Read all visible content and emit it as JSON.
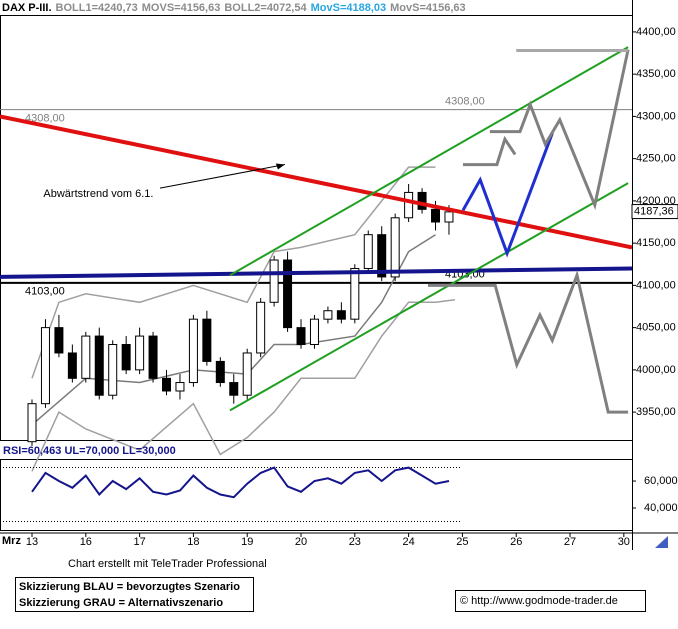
{
  "chart_data": {
    "type": "candlestick",
    "header": [
      {
        "text": "DAX P-III.",
        "color": "#000000"
      },
      {
        "text": "BOLL1=4240,73",
        "color": "#8c8c8c"
      },
      {
        "text": "MOVS=4156,63",
        "color": "#8c8c8c"
      },
      {
        "text": "BOLL2=4072,54",
        "color": "#8c8c8c"
      },
      {
        "text": "MovS=4188,03",
        "color": "#2aa6e0"
      },
      {
        "text": "MovS=4156,63",
        "color": "#8c8c8c"
      }
    ],
    "x_axis_label": "Mrz",
    "xlim": [
      -0.595,
      11.152
    ],
    "xticks": [
      {
        "value": 0,
        "label": "13"
      },
      {
        "value": 1,
        "label": "16"
      },
      {
        "value": 2,
        "label": "17"
      },
      {
        "value": 3,
        "label": "18"
      },
      {
        "value": 4,
        "label": "19"
      },
      {
        "value": 5,
        "label": "20"
      },
      {
        "value": 6,
        "label": "23"
      },
      {
        "value": 7,
        "label": "24"
      },
      {
        "value": 8,
        "label": "25"
      },
      {
        "value": 9,
        "label": "26"
      },
      {
        "value": 10,
        "label": "27"
      },
      {
        "value": 11,
        "label": "30"
      }
    ],
    "ylim": [
      3917,
      4420
    ],
    "yticks": [
      {
        "value": 3950,
        "label": "3950,00"
      },
      {
        "value": 4000,
        "label": "4000,00"
      },
      {
        "value": 4050,
        "label": "4050,00"
      },
      {
        "value": 4100,
        "label": "4100,00"
      },
      {
        "value": 4150,
        "label": "4150,00"
      },
      {
        "value": 4200,
        "label": "4200,00"
      },
      {
        "value": 4250,
        "label": "4250,00"
      },
      {
        "value": 4300,
        "label": "4300,00"
      },
      {
        "value": 4350,
        "label": "4350,00"
      },
      {
        "value": 4400,
        "label": "4400,00"
      }
    ],
    "candles": {
      "x": [
        0,
        0.25,
        0.5,
        0.75,
        1,
        1.25,
        1.5,
        1.75,
        2,
        2.25,
        2.5,
        2.75,
        3,
        3.25,
        3.5,
        3.75,
        4,
        4.25,
        4.5,
        4.75,
        5,
        5.25,
        5.5,
        5.75,
        6,
        6.25,
        6.5,
        6.75,
        7,
        7.25,
        7.5,
        7.75
      ],
      "open": [
        3915,
        3960,
        4050,
        4020,
        3990,
        4040,
        3970,
        4030,
        4000,
        4040,
        3990,
        3975,
        3985,
        4060,
        4010,
        3985,
        3970,
        4020,
        4080,
        4130,
        4050,
        4030,
        4060,
        4070,
        4060,
        4120,
        4160,
        4110,
        4180,
        4210,
        4190,
        4175
      ],
      "high": [
        3965,
        4060,
        4065,
        4030,
        4045,
        4050,
        4035,
        4040,
        4050,
        4045,
        4000,
        3995,
        4065,
        4070,
        4015,
        3995,
        4025,
        4085,
        4135,
        4140,
        4060,
        4065,
        4075,
        4080,
        4125,
        4165,
        4170,
        4185,
        4220,
        4215,
        4200,
        4195
      ],
      "low": [
        3910,
        3955,
        4015,
        3985,
        3985,
        3965,
        3965,
        3995,
        3995,
        3985,
        3970,
        3965,
        3980,
        4005,
        3980,
        3960,
        3965,
        4015,
        4075,
        4045,
        4025,
        4025,
        4055,
        4055,
        4055,
        4115,
        4105,
        4105,
        4175,
        4185,
        4165,
        4160
      ],
      "close": [
        3960,
        4050,
        4020,
        3990,
        4040,
        3970,
        4030,
        4000,
        4040,
        3990,
        3975,
        3985,
        4060,
        4010,
        3985,
        3970,
        4020,
        4080,
        4130,
        4050,
        4030,
        4060,
        4070,
        4060,
        4120,
        4160,
        4110,
        4180,
        4210,
        4190,
        4175,
        4187
      ]
    },
    "last_price": {
      "value": 4187.36,
      "label": "4187,36"
    },
    "overlays": [
      {
        "color": "#a0a0a0",
        "x": [
          0,
          0.5,
          1,
          2,
          3,
          4,
          4.5,
          5,
          6,
          6.5,
          7,
          7.5
        ],
        "values": [
          3990,
          4080,
          4090,
          4080,
          4100,
          4080,
          4140,
          4145,
          4160,
          4200,
          4240,
          4240
        ]
      },
      {
        "color": "#a0a0a0",
        "x": [
          0,
          0.5,
          1,
          2,
          3,
          3.5,
          4,
          4.5,
          5,
          6,
          6.5,
          7,
          7.5,
          7.86
        ],
        "values": [
          3880,
          3950,
          3930,
          3905,
          3960,
          3900,
          3920,
          3950,
          3990,
          3990,
          4040,
          4080,
          4080,
          4083
        ]
      },
      {
        "color": "#7a7a7a",
        "x": [
          0,
          1,
          2,
          3,
          4,
          4.5,
          5,
          6,
          6.5,
          7,
          7.5
        ],
        "values": [
          3935,
          3990,
          3985,
          4000,
          3995,
          4030,
          4030,
          4040,
          4080,
          4140,
          4160
        ]
      }
    ],
    "levels": [
      {
        "value": 4308,
        "label": "4308,00",
        "color": "#808080"
      },
      {
        "value": 4103,
        "label": "4103,00",
        "color": "#000000"
      }
    ],
    "lines": [
      {
        "color": "#e01010",
        "width": 4,
        "x": [
          -0.595,
          11.152
        ],
        "values": [
          4300,
          4145
        ]
      },
      {
        "color": "#14148c",
        "width": 4,
        "x": [
          -0.595,
          11.152
        ],
        "values": [
          4110,
          4120
        ]
      },
      {
        "color": "#20a020",
        "width": 2,
        "x": [
          3.68,
          11.08
        ],
        "values": [
          3952,
          4221
        ]
      },
      {
        "color": "#20a020",
        "width": 2,
        "x": [
          3.68,
          11.08
        ],
        "values": [
          4112,
          4382
        ]
      },
      {
        "color": "#2030d0",
        "width": 3,
        "x": [
          8.01,
          8.33,
          8.83,
          9.67
        ],
        "values": [
          4189,
          4225,
          4138,
          4280
        ]
      },
      {
        "color": "#808080",
        "width": 3,
        "x": [
          8.51,
          9.07,
          9.26,
          9.54,
          9.81,
          10.46,
          11.08
        ],
        "values": [
          4282,
          4282,
          4314,
          4267,
          4296,
          4195,
          4379
        ]
      },
      {
        "color": "#808080",
        "width": 3,
        "x": [
          8.01,
          8.64,
          8.79,
          8.98
        ],
        "values": [
          4243,
          4243,
          4273,
          4255
        ]
      },
      {
        "color": "#a8a8a8",
        "width": 3,
        "x": [
          9.0,
          11.08
        ],
        "values": [
          4378,
          4378
        ]
      },
      {
        "color": "#808080",
        "width": 3,
        "x": [
          7.36,
          8.61,
          9.01,
          9.44,
          9.67,
          10.13,
          10.71,
          11.08
        ],
        "values": [
          4100,
          4100,
          4006,
          4065,
          4035,
          4112,
          3950,
          3950
        ]
      }
    ],
    "annotation": {
      "text": "Abwärtstrend vom 6.1.",
      "x": 0.1,
      "y": 4208,
      "arrow_to": [
        4.7,
        4243
      ]
    },
    "rsi": {
      "header": "RSI=60,463 UL=70,000 LL=30,000",
      "color": "#14148c",
      "ylim": [
        23.7,
        75.6
      ],
      "yticks": [
        {
          "value": 40,
          "label": "40,000"
        },
        {
          "value": 60,
          "label": "60,000"
        }
      ],
      "upper": 70,
      "lower": 30,
      "x": [
        0,
        0.25,
        0.5,
        0.75,
        1,
        1.25,
        1.5,
        1.75,
        2,
        2.25,
        2.5,
        2.75,
        3,
        3.25,
        3.5,
        3.75,
        4,
        4.25,
        4.5,
        4.75,
        5,
        5.25,
        5.5,
        5.75,
        6,
        6.25,
        6.5,
        6.75,
        7,
        7.25,
        7.5,
        7.75
      ],
      "values": [
        52,
        66,
        60,
        55,
        64,
        50,
        60,
        54,
        62,
        52,
        50,
        53,
        64,
        55,
        50,
        48,
        58,
        66,
        70,
        56,
        52,
        60,
        62,
        58,
        66,
        68,
        60,
        68,
        70,
        64,
        58,
        60
      ]
    },
    "credit": "Chart erstellt mit TeleTrader Professional",
    "legend": [
      "Skizzierung BLAU = bevorzugtes Szenario",
      "Skizzierung GRAU = Alternativszenario"
    ],
    "copyright": "© http://www.godmode-trader.de"
  }
}
